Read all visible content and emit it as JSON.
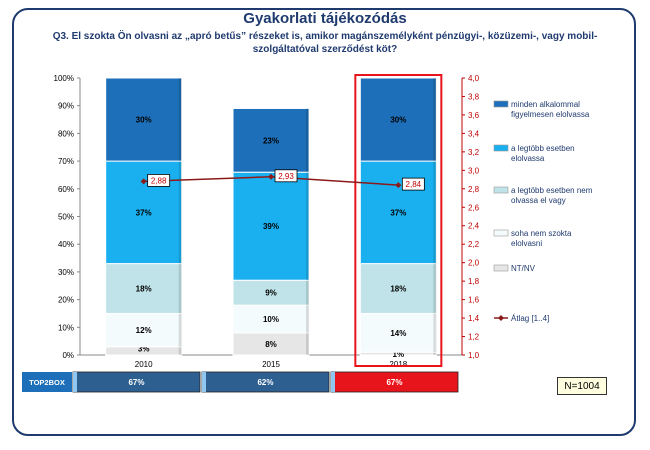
{
  "title": "Gyakorlati tájékozódás",
  "question": "Q3. El szokta Ön olvasni az „apró betűs” részeket is, amikor magánszemélyként pénzügyi-, közüzemi-, vagy mobil-szolgáltatóval szerződést köt?",
  "sample_note": "N=1004",
  "top2box": {
    "label": "TOP2BOX",
    "values": [
      "67%",
      "62%",
      "67%"
    ],
    "colors": [
      "#2e5f91",
      "#2e5f91",
      "#e8141b"
    ]
  },
  "highlight_color": "#e8141b",
  "chart_data": {
    "type": "bar",
    "stacked": true,
    "categories": [
      "2010",
      "2015",
      "2018"
    ],
    "y_left": {
      "ticks": [
        "0%",
        "10%",
        "20%",
        "30%",
        "40%",
        "50%",
        "60%",
        "70%",
        "80%",
        "90%",
        "100%"
      ],
      "range": [
        0,
        100
      ]
    },
    "y_right": {
      "ticks": [
        "1,0",
        "1,2",
        "1,4",
        "1,6",
        "1,8",
        "2,0",
        "2,2",
        "2,4",
        "2,6",
        "2,8",
        "3,0",
        "3,2",
        "3,4",
        "3,6",
        "3,8",
        "4,0"
      ],
      "range": [
        1.0,
        4.0
      ]
    },
    "highlight_category": "2018",
    "series": [
      {
        "name": "NT/NV",
        "color": "#e6e6e6",
        "values": [
          3,
          8,
          1
        ],
        "labels": [
          "3%",
          "8%",
          "1%"
        ]
      },
      {
        "name": "soha nem szokta elolvasni",
        "color": "#f4fbfc",
        "values": [
          12,
          10,
          14
        ],
        "labels": [
          "12%",
          "10%",
          "14%"
        ]
      },
      {
        "name": "a legtöbb esetben nem olvassa el vagy",
        "color": "#bfe3e8",
        "values": [
          18,
          9,
          18
        ],
        "labels": [
          "18%",
          "9%",
          "18%"
        ]
      },
      {
        "name": "a legtöbb esetben elolvassa",
        "color": "#1ab0ef",
        "values": [
          37,
          39,
          37
        ],
        "labels": [
          "37%",
          "39%",
          "37%"
        ]
      },
      {
        "name": "minden alkalommal figyelmesen elolvassa",
        "color": "#1c6fb8",
        "values": [
          30,
          23,
          30
        ],
        "labels": [
          "30%",
          "23%",
          "30%"
        ]
      }
    ],
    "line": {
      "name": "Átlag [1..4]",
      "color": "#8b1a1a",
      "values": [
        2.88,
        2.93,
        2.84
      ],
      "labels": [
        "2,88",
        "2,93",
        "2,84"
      ]
    },
    "legend": [
      {
        "name": "minden alkalommal figyelmesen elolvassa",
        "lines": [
          "minden alkalommal",
          "figyelmesen elolvassa"
        ],
        "color": "#1c6fb8"
      },
      {
        "name": "a legtöbb esetben elolvassa",
        "lines": [
          "a legtöbb esetben",
          "elolvassa"
        ],
        "color": "#1ab0ef"
      },
      {
        "name": "a legtöbb esetben nem olvassa el vagy",
        "lines": [
          "a legtöbb esetben nem",
          "olvassa el vagy"
        ],
        "color": "#bfe3e8"
      },
      {
        "name": "soha nem szokta elolvasni",
        "lines": [
          "soha nem szokta",
          "elolvasni"
        ],
        "color": "#f4fbfc"
      },
      {
        "name": "NT/NV",
        "lines": [
          "NT/NV"
        ],
        "color": "#e6e6e6"
      },
      {
        "name": "Átlag [1..4]",
        "lines": [
          "Átlag [1..4]"
        ],
        "color": "#8b1a1a",
        "line": true
      }
    ]
  }
}
